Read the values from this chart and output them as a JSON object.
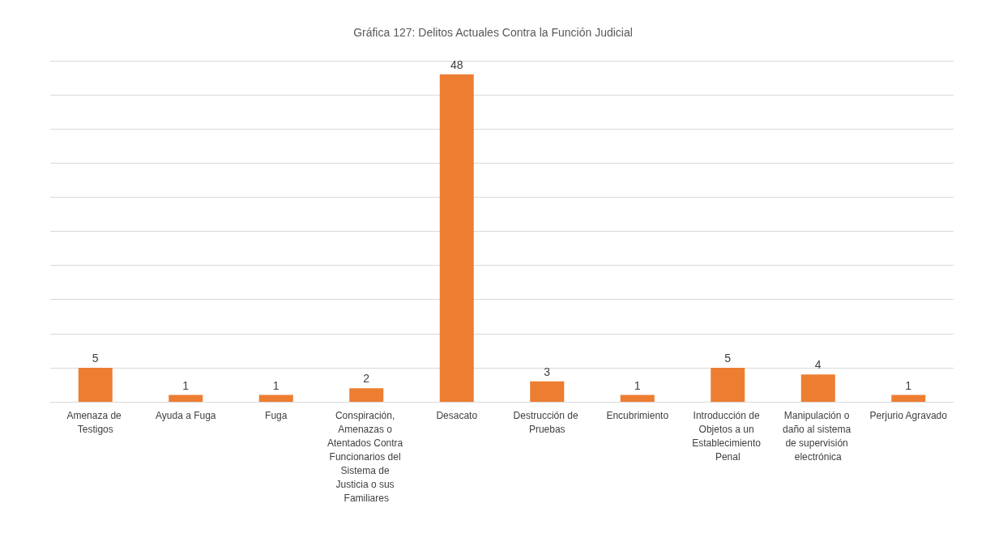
{
  "chart_data": {
    "type": "bar",
    "title": "Gráfica 127: Delitos Actuales Contra la Función Judicial",
    "categories": [
      "Amenaza de Testigos",
      "Ayuda a Fuga",
      "Fuga",
      "Conspiración, Amenazas o Atentados Contra Funcionarios del Sistema de Justicia o sus Familiares",
      "Desacato",
      "Destrucción de Pruebas",
      "Encubrimiento",
      "Introducción de Objetos a un Establecimiento Penal",
      "Manipulación o daño al sistema de supervisión electrónica",
      "Perjurio Agravado"
    ],
    "values": [
      5,
      1,
      1,
      2,
      48,
      3,
      1,
      5,
      4,
      1
    ],
    "color": "#ed7d31",
    "ylim": [
      0,
      50
    ],
    "yticks": [
      {
        "value": 0,
        "label": null
      },
      {
        "value": 5,
        "label": null
      },
      {
        "value": 10,
        "label": null
      },
      {
        "value": 15,
        "label": null
      },
      {
        "value": 20,
        "label": null
      },
      {
        "value": 25,
        "label": null
      },
      {
        "value": 30,
        "label": null
      },
      {
        "value": 35,
        "label": null
      },
      {
        "value": 40,
        "label": null
      },
      {
        "value": 45,
        "label": null
      },
      {
        "value": 50,
        "label": null
      }
    ],
    "tick_labels": "x",
    "grid": "y",
    "data_labels": true
  }
}
